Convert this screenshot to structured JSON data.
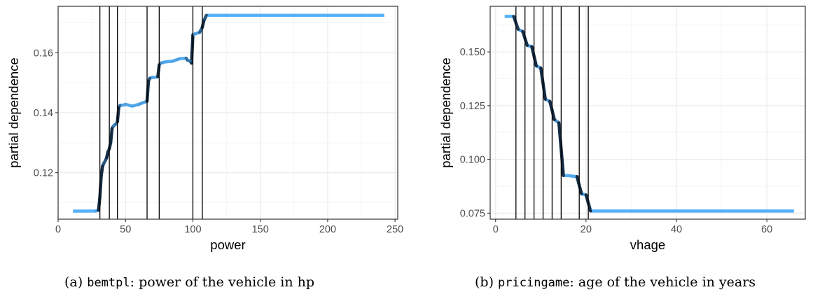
{
  "colors": {
    "low": "#132B43",
    "high": "#56B1F7",
    "vline": "#000000",
    "grid_major": "#ebebeb",
    "grid_minor": "#f5f5f5"
  },
  "chart_data": [
    {
      "type": "line",
      "xlabel": "power",
      "ylabel": "partial dependence",
      "xlim": [
        0,
        252
      ],
      "ylim": [
        0.1045,
        0.1755
      ],
      "xticks": [
        0,
        50,
        100,
        150,
        200,
        250
      ],
      "xtick_labels": [
        "0",
        "50",
        "100",
        "150",
        "200",
        "250"
      ],
      "yticks": [
        0.12,
        0.14,
        0.16
      ],
      "ytick_labels": [
        "0.12",
        "0.14",
        "0.16"
      ],
      "grid": true,
      "vlines": [
        31,
        38,
        44,
        66,
        75,
        100,
        107
      ],
      "x": [
        11,
        20,
        28,
        30,
        31,
        32,
        33,
        34,
        35,
        36,
        37,
        38,
        39,
        40,
        41,
        42,
        43,
        44,
        45,
        46,
        48,
        50,
        55,
        60,
        62,
        64,
        66,
        67,
        68,
        70,
        72,
        74,
        75,
        76,
        78,
        80,
        85,
        90,
        95,
        96,
        98,
        99,
        100,
        101,
        103,
        105,
        107,
        108,
        110,
        150,
        200,
        242
      ],
      "y": [
        0.1072,
        0.1072,
        0.1072,
        0.1075,
        0.112,
        0.119,
        0.1222,
        0.1232,
        0.124,
        0.125,
        0.127,
        0.128,
        0.13,
        0.1348,
        0.1355,
        0.136,
        0.1362,
        0.137,
        0.1418,
        0.1425,
        0.1425,
        0.1428,
        0.1422,
        0.1428,
        0.1432,
        0.1435,
        0.1438,
        0.1505,
        0.1515,
        0.1518,
        0.1518,
        0.152,
        0.156,
        0.1565,
        0.1568,
        0.157,
        0.1572,
        0.158,
        0.1582,
        0.1575,
        0.1572,
        0.1565,
        0.166,
        0.1662,
        0.1665,
        0.1668,
        0.1685,
        0.1705,
        0.1725,
        0.1725,
        0.1725,
        0.1725
      ]
    },
    {
      "type": "line",
      "xlabel": "vhage",
      "ylabel": "partial dependence",
      "xlim": [
        -1.2,
        68.5
      ],
      "ylim": [
        0.0722,
        0.1712
      ],
      "xticks": [
        0,
        20,
        40,
        60
      ],
      "xtick_labels": [
        "0",
        "20",
        "40",
        "60"
      ],
      "yticks": [
        0.075,
        0.1,
        0.125,
        0.15
      ],
      "ytick_labels": [
        "0.075",
        "0.100",
        "0.125",
        "0.150"
      ],
      "grid": true,
      "vlines": [
        4.5,
        6.5,
        8.5,
        10.5,
        12.5,
        14.5,
        18.5,
        20.5
      ],
      "x": [
        2,
        3,
        4,
        5,
        6,
        7,
        8,
        9,
        10,
        11,
        12,
        13,
        14,
        15,
        16,
        17,
        18,
        19,
        20,
        21,
        22,
        30,
        40,
        50,
        60,
        66
      ],
      "y": [
        0.1665,
        0.1665,
        0.1665,
        0.1605,
        0.1595,
        0.153,
        0.1525,
        0.1435,
        0.1425,
        0.128,
        0.127,
        0.1185,
        0.117,
        0.0925,
        0.0925,
        0.0922,
        0.092,
        0.084,
        0.0835,
        0.076,
        0.076,
        0.076,
        0.076,
        0.076,
        0.076,
        0.076
      ]
    }
  ],
  "captions": [
    {
      "prefix": "(a) ",
      "code": "bemtpl",
      "text": ": power of the vehicle in hp"
    },
    {
      "prefix": "(b) ",
      "code": "pricingame",
      "text": ": age of the vehicle in years"
    }
  ]
}
